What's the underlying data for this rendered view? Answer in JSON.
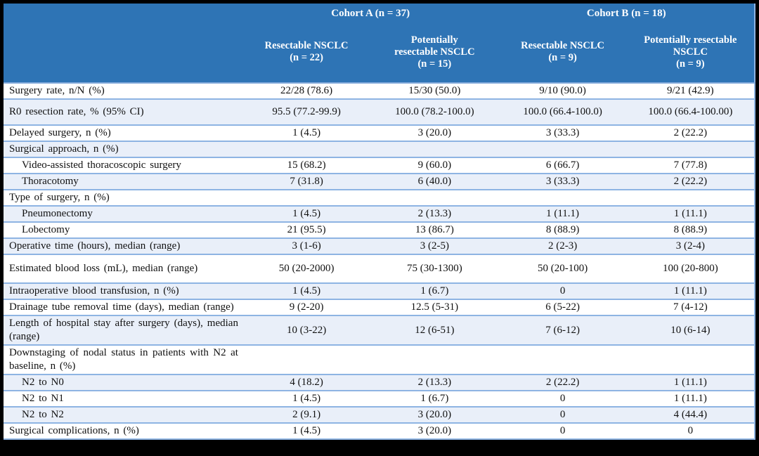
{
  "colors": {
    "frame_black": "#000000",
    "header_blue": "#2E74B5",
    "stripe_blue": "#E9EFF9",
    "grid_blue": "#8EB4E3",
    "grid_line": "#7FA8D9"
  },
  "table": {
    "header": {
      "cohort_a": "Cohort A (n = 37)",
      "cohort_b": "Cohort B (n = 18)",
      "columns": [
        {
          "label": "Resectable NSCLC",
          "n": "(n = 22)"
        },
        {
          "label": "Potentially resectable NSCLC",
          "n": "(n = 15)"
        },
        {
          "label": "Resectable NSCLC",
          "n": "(n = 9)"
        },
        {
          "label": "Potentially resectable NSCLC",
          "n": "(n = 9)"
        }
      ]
    },
    "rows": [
      {
        "label": "Surgery rate, n/N (%)",
        "values": [
          "22/28 (78.6)",
          "15/30 (50.0)",
          "9/10 (90.0)",
          "9/21 (42.9)"
        ]
      },
      {
        "label": "R0 resection rate, % (95% CI)",
        "values": [
          "95.5 (77.2-99.9)",
          "100.0 (78.2-100.0)",
          "100.0 (66.4-100.0)",
          "100.0 (66.4-100.00)"
        ]
      },
      {
        "label": "Delayed surgery, n (%)",
        "values": [
          "1 (4.5)",
          "3 (20.0)",
          "3 (33.3)",
          "2 (22.2)"
        ]
      },
      {
        "label": "Surgical approach, n (%)",
        "values": [
          "",
          "",
          "",
          ""
        ]
      },
      {
        "label": "Video-assisted thoracoscopic surgery",
        "values": [
          "15 (68.2)",
          "9 (60.0)",
          "6 (66.7)",
          "7 (77.8)"
        ]
      },
      {
        "label": "Thoracotomy",
        "values": [
          "7 (31.8)",
          "6 (40.0)",
          "3 (33.3)",
          "2 (22.2)"
        ]
      },
      {
        "label": "Type of surgery, n (%)",
        "values": [
          "",
          "",
          "",
          ""
        ]
      },
      {
        "label": "Pneumonectomy",
        "values": [
          "1 (4.5)",
          "2 (13.3)",
          "1 (11.1)",
          "1 (11.1)"
        ]
      },
      {
        "label": "Lobectomy",
        "values": [
          "21 (95.5)",
          "13 (86.7)",
          "8 (88.9)",
          "8 (88.9)"
        ]
      },
      {
        "label": "Operative time (hours), median (range)",
        "values": [
          "3 (1-6)",
          "3 (2-5)",
          "2 (2-3)",
          "3 (2-4)"
        ]
      },
      {
        "label": "Estimated blood loss (mL), median (range)",
        "values": [
          "50 (20-2000)",
          "75 (30-1300)",
          "50 (20-100)",
          "100 (20-800)"
        ]
      },
      {
        "label": "Intraoperative blood transfusion, n (%)",
        "values": [
          "1 (4.5)",
          "1 (6.7)",
          "0",
          "1 (11.1)"
        ]
      },
      {
        "label": "Drainage tube removal time (days), median (range)",
        "values": [
          "9 (2-20)",
          "12.5 (5-31)",
          "6 (5-22)",
          "7 (4-12)"
        ]
      },
      {
        "label": "Length of hospital stay after surgery (days), median (range)",
        "values": [
          "10 (3-22)",
          "12 (6-51)",
          "7 (6-12)",
          "10 (6-14)"
        ]
      },
      {
        "label": "Downstaging of nodal status in patients with N2 at baseline, n (%)",
        "values": [
          "",
          "",
          "",
          ""
        ]
      },
      {
        "label": "N2 to N0",
        "values": [
          "4 (18.2)",
          "2 (13.3)",
          "2 (22.2)",
          "1 (11.1)"
        ]
      },
      {
        "label": "N2 to N1",
        "values": [
          "1 (4.5)",
          "1 (6.7)",
          "0",
          "1 (11.1)"
        ]
      },
      {
        "label": "N2 to N2",
        "values": [
          "2 (9.1)",
          "3 (20.0)",
          "0",
          "4 (44.4)"
        ]
      },
      {
        "label": "Surgical complications, n (%)",
        "values": [
          "1 (4.5)",
          "3 (20.0)",
          "0",
          "0"
        ]
      }
    ]
  }
}
